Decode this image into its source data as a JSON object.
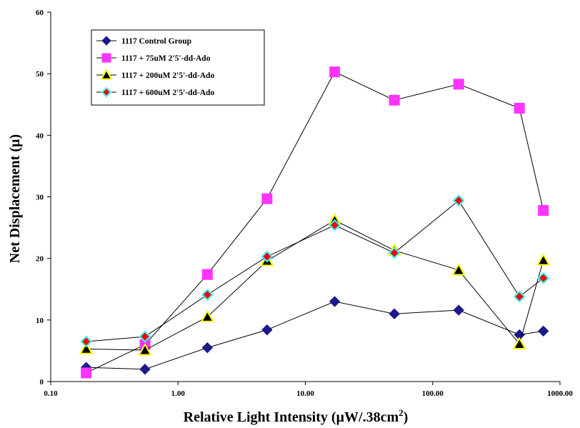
{
  "chart_data": {
    "type": "scatter",
    "ylabel": "Net Displacement (µ)",
    "xlabel_main": "Relative Light Intensity (µW/.38cm",
    "xlabel_sup": "2",
    "xlabel_close": ")",
    "x_scale": "log",
    "xlim": [
      0.1,
      1000
    ],
    "ylim": [
      0,
      60
    ],
    "x_ticks": [
      {
        "value": 0.1,
        "label": "0.10"
      },
      {
        "value": 1,
        "label": "1.00"
      },
      {
        "value": 10,
        "label": "10.00"
      },
      {
        "value": 100,
        "label": "100.00"
      },
      {
        "value": 1000,
        "label": "1000.00"
      }
    ],
    "y_ticks": [
      {
        "value": 0,
        "label": "0"
      },
      {
        "value": 10,
        "label": "10"
      },
      {
        "value": 20,
        "label": "20"
      },
      {
        "value": 30,
        "label": "30"
      },
      {
        "value": 40,
        "label": "40"
      },
      {
        "value": 50,
        "label": "50"
      },
      {
        "value": 60,
        "label": "60"
      }
    ],
    "grid": false,
    "legend_position": "top-left",
    "x": [
      0.19,
      0.55,
      1.7,
      5,
      17,
      50,
      160,
      480,
      740
    ],
    "series": [
      {
        "name": "1117 Control Group",
        "marker": "diamond",
        "fill": "#1a1a8c",
        "stroke": "#1a1a8c",
        "values": [
          2.3,
          2.0,
          5.5,
          8.4,
          13.0,
          11.0,
          11.6,
          7.6,
          8.2
        ]
      },
      {
        "name": "1117 + 75uM 2'5'-dd-Ado",
        "marker": "square",
        "fill": "#ff33ff",
        "stroke": "#ff33ff",
        "values": [
          1.4,
          6.0,
          17.4,
          29.7,
          50.3,
          45.7,
          48.3,
          44.4,
          27.8
        ]
      },
      {
        "name": "1117 + 200uM 2'5'-dd-Ado",
        "marker": "triangle",
        "fill": "#000000",
        "stroke": "#ffff00",
        "values": [
          5.3,
          5.1,
          10.5,
          19.6,
          26.2,
          21.3,
          18.1,
          6.1,
          19.7
        ]
      },
      {
        "name": "1117 + 600uM 2'5'-dd-Ado",
        "marker": "diamond-outline",
        "fill": "#ff0000",
        "stroke": "#33ffff",
        "values": [
          6.5,
          7.3,
          14.1,
          20.3,
          25.4,
          20.9,
          29.4,
          13.8,
          16.8
        ]
      }
    ]
  }
}
